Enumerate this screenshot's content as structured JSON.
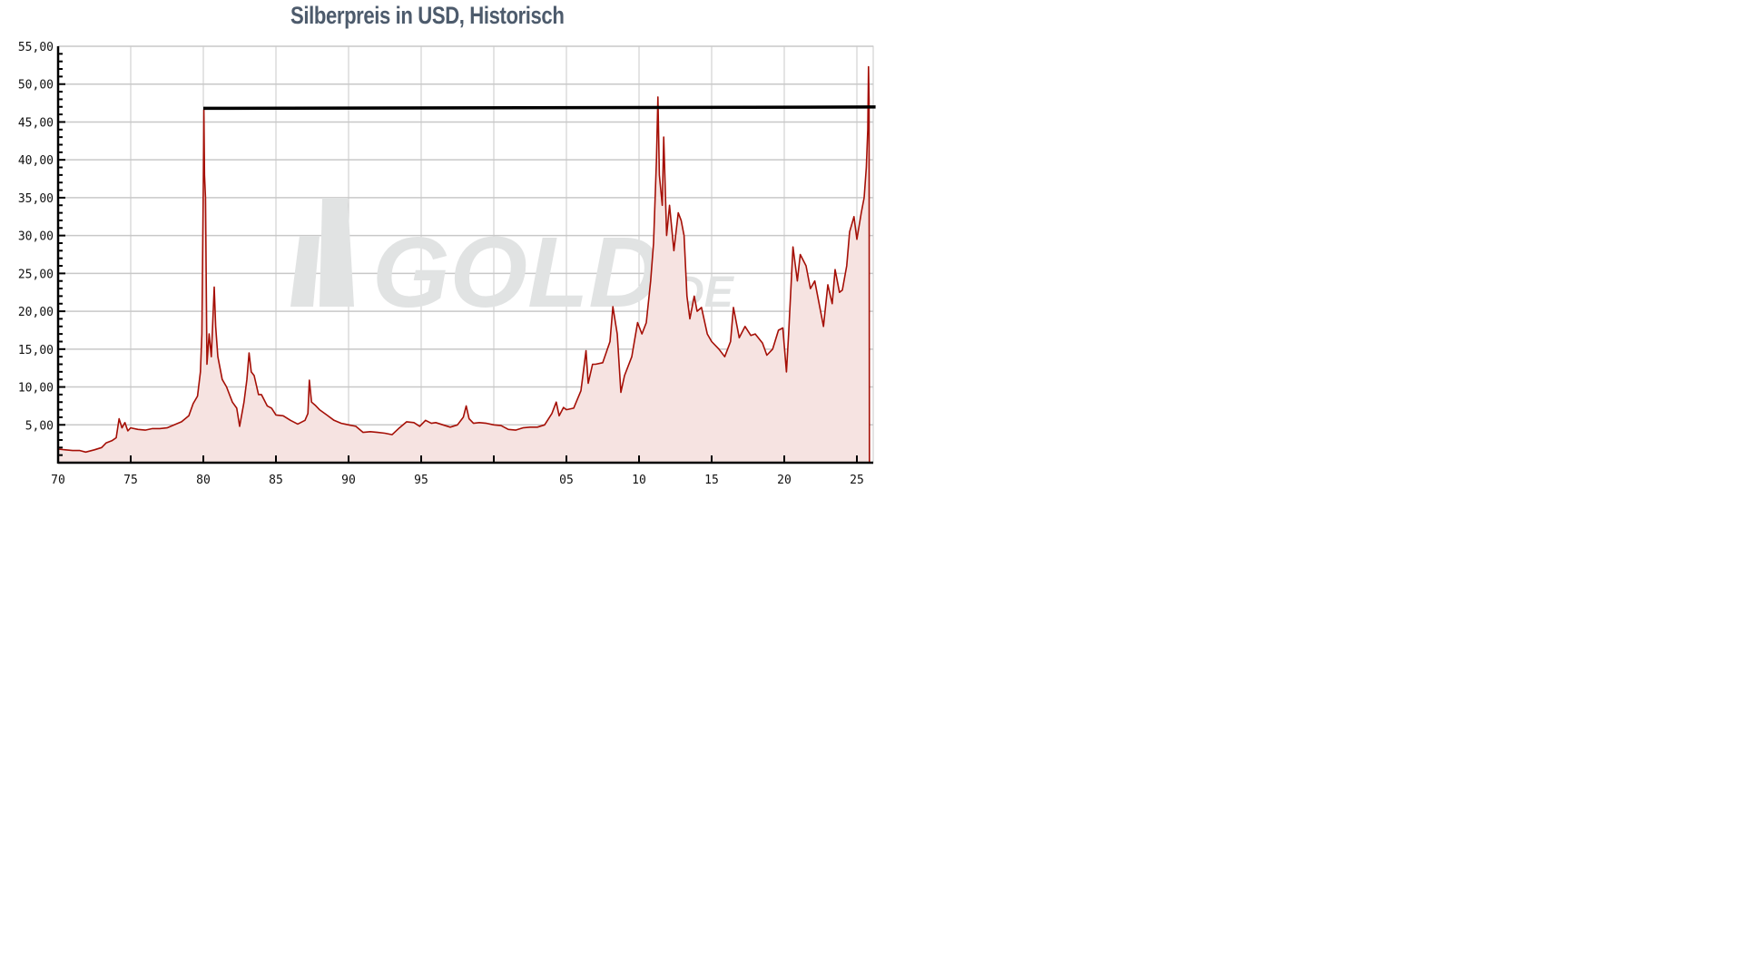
{
  "chart_data": {
    "type": "area",
    "title": "Silberpreis in USD, Historisch",
    "watermark": "GOLD.DE",
    "xlabel": "",
    "ylabel": "",
    "xlim": [
      1970,
      2026
    ],
    "ylim": [
      0,
      55
    ],
    "grid": true,
    "x_ticks": [
      {
        "value": 1970,
        "label": "70"
      },
      {
        "value": 1975,
        "label": "75"
      },
      {
        "value": 1980,
        "label": "80"
      },
      {
        "value": 1985,
        "label": "85"
      },
      {
        "value": 1990,
        "label": "90"
      },
      {
        "value": 1995,
        "label": "95"
      },
      {
        "value": 2000,
        "label": ""
      },
      {
        "value": 2005,
        "label": "05"
      },
      {
        "value": 2010,
        "label": "10"
      },
      {
        "value": 2015,
        "label": "15"
      },
      {
        "value": 2020,
        "label": "20"
      },
      {
        "value": 2025,
        "label": "25"
      }
    ],
    "y_ticks": [
      {
        "value": 5,
        "label": "5,00"
      },
      {
        "value": 10,
        "label": "10,00"
      },
      {
        "value": 15,
        "label": "15,00"
      },
      {
        "value": 20,
        "label": "20,00"
      },
      {
        "value": 25,
        "label": "25,00"
      },
      {
        "value": 30,
        "label": "30,00"
      },
      {
        "value": 35,
        "label": "35,00"
      },
      {
        "value": 40,
        "label": "40,00"
      },
      {
        "value": 45,
        "label": "45,00"
      },
      {
        "value": 50,
        "label": "50,00"
      },
      {
        "value": 55,
        "label": "55,00"
      }
    ],
    "reference_line": {
      "value": 46.8,
      "from": 1980,
      "to": 2026.1,
      "color": "#000000"
    },
    "series_color": "#a50f06",
    "fill_color": "#f6e3e1",
    "grid_color": "#c8c8c8",
    "series": [
      {
        "points": [
          [
            1970,
            1.8
          ],
          [
            1970.5,
            1.7
          ],
          [
            1971,
            1.6
          ],
          [
            1971.5,
            1.6
          ],
          [
            1971.9,
            1.4
          ],
          [
            1972.5,
            1.7
          ],
          [
            1973,
            2.0
          ],
          [
            1973.3,
            2.6
          ],
          [
            1973.7,
            2.9
          ],
          [
            1974.0,
            3.3
          ],
          [
            1974.2,
            5.8
          ],
          [
            1974.4,
            4.6
          ],
          [
            1974.6,
            5.3
          ],
          [
            1974.8,
            4.2
          ],
          [
            1975,
            4.6
          ],
          [
            1975.5,
            4.4
          ],
          [
            1976,
            4.3
          ],
          [
            1976.5,
            4.5
          ],
          [
            1977,
            4.5
          ],
          [
            1977.5,
            4.6
          ],
          [
            1978,
            5.0
          ],
          [
            1978.5,
            5.4
          ],
          [
            1979,
            6.2
          ],
          [
            1979.3,
            7.8
          ],
          [
            1979.6,
            8.8
          ],
          [
            1979.8,
            12
          ],
          [
            1979.9,
            17
          ],
          [
            1980.0,
            37
          ],
          [
            1980.04,
            46.6
          ],
          [
            1980.08,
            38
          ],
          [
            1980.15,
            35
          ],
          [
            1980.25,
            13
          ],
          [
            1980.4,
            17
          ],
          [
            1980.55,
            14
          ],
          [
            1980.75,
            23.2
          ],
          [
            1980.85,
            18
          ],
          [
            1981,
            14
          ],
          [
            1981.3,
            11
          ],
          [
            1981.6,
            10
          ],
          [
            1982,
            8
          ],
          [
            1982.3,
            7.2
          ],
          [
            1982.5,
            4.8
          ],
          [
            1982.8,
            8
          ],
          [
            1983,
            11
          ],
          [
            1983.15,
            14.5
          ],
          [
            1983.3,
            12
          ],
          [
            1983.5,
            11.5
          ],
          [
            1983.8,
            9
          ],
          [
            1984,
            9
          ],
          [
            1984.4,
            7.5
          ],
          [
            1984.7,
            7.2
          ],
          [
            1985,
            6.3
          ],
          [
            1985.5,
            6.2
          ],
          [
            1986,
            5.6
          ],
          [
            1986.5,
            5.1
          ],
          [
            1987,
            5.6
          ],
          [
            1987.2,
            6.5
          ],
          [
            1987.3,
            10.9
          ],
          [
            1987.45,
            8
          ],
          [
            1987.7,
            7.6
          ],
          [
            1988,
            7.0
          ],
          [
            1988.5,
            6.3
          ],
          [
            1989,
            5.6
          ],
          [
            1989.5,
            5.2
          ],
          [
            1990,
            5.0
          ],
          [
            1990.5,
            4.8
          ],
          [
            1991,
            4.0
          ],
          [
            1991.5,
            4.1
          ],
          [
            1992,
            4.0
          ],
          [
            1992.5,
            3.9
          ],
          [
            1993,
            3.7
          ],
          [
            1993.5,
            4.6
          ],
          [
            1994,
            5.4
          ],
          [
            1994.5,
            5.3
          ],
          [
            1994.9,
            4.8
          ],
          [
            1995.3,
            5.6
          ],
          [
            1995.7,
            5.2
          ],
          [
            1996,
            5.3
          ],
          [
            1996.5,
            5.0
          ],
          [
            1997,
            4.7
          ],
          [
            1997.5,
            5.0
          ],
          [
            1997.9,
            6.0
          ],
          [
            1998.1,
            7.5
          ],
          [
            1998.3,
            5.8
          ],
          [
            1998.6,
            5.2
          ],
          [
            1999,
            5.3
          ],
          [
            1999.5,
            5.2
          ],
          [
            2000,
            5.0
          ],
          [
            2000.5,
            4.9
          ],
          [
            2001,
            4.4
          ],
          [
            2001.5,
            4.3
          ],
          [
            2002,
            4.6
          ],
          [
            2002.5,
            4.7
          ],
          [
            2003,
            4.7
          ],
          [
            2003.5,
            5.0
          ],
          [
            2004,
            6.5
          ],
          [
            2004.3,
            8.0
          ],
          [
            2004.5,
            6.2
          ],
          [
            2004.8,
            7.3
          ],
          [
            2005,
            7.0
          ],
          [
            2005.5,
            7.2
          ],
          [
            2006,
            9.5
          ],
          [
            2006.35,
            14.8
          ],
          [
            2006.5,
            10.5
          ],
          [
            2006.8,
            13
          ],
          [
            2007,
            13
          ],
          [
            2007.5,
            13.2
          ],
          [
            2008,
            16
          ],
          [
            2008.2,
            20.6
          ],
          [
            2008.5,
            17
          ],
          [
            2008.75,
            9.3
          ],
          [
            2009,
            11.5
          ],
          [
            2009.5,
            14
          ],
          [
            2009.9,
            18.5
          ],
          [
            2010.2,
            17
          ],
          [
            2010.5,
            18.5
          ],
          [
            2010.8,
            24
          ],
          [
            2011,
            29
          ],
          [
            2011.2,
            40
          ],
          [
            2011.3,
            48.3
          ],
          [
            2011.4,
            38
          ],
          [
            2011.6,
            34
          ],
          [
            2011.7,
            43
          ],
          [
            2011.9,
            30
          ],
          [
            2012.1,
            34
          ],
          [
            2012.4,
            28
          ],
          [
            2012.7,
            33
          ],
          [
            2012.9,
            32
          ],
          [
            2013.1,
            30
          ],
          [
            2013.3,
            22
          ],
          [
            2013.5,
            19
          ],
          [
            2013.8,
            22
          ],
          [
            2014,
            20
          ],
          [
            2014.3,
            20.5
          ],
          [
            2014.7,
            17
          ],
          [
            2015,
            16
          ],
          [
            2015.5,
            15
          ],
          [
            2015.9,
            14
          ],
          [
            2016.3,
            16
          ],
          [
            2016.5,
            20.5
          ],
          [
            2016.9,
            16.5
          ],
          [
            2017.3,
            18
          ],
          [
            2017.7,
            16.8
          ],
          [
            2018,
            17
          ],
          [
            2018.5,
            15.8
          ],
          [
            2018.8,
            14.2
          ],
          [
            2019.2,
            15
          ],
          [
            2019.6,
            17.5
          ],
          [
            2019.9,
            17.8
          ],
          [
            2020.15,
            12
          ],
          [
            2020.3,
            17
          ],
          [
            2020.6,
            28.5
          ],
          [
            2020.9,
            24
          ],
          [
            2021.1,
            27.5
          ],
          [
            2021.5,
            26
          ],
          [
            2021.8,
            23
          ],
          [
            2022.1,
            24
          ],
          [
            2022.4,
            21
          ],
          [
            2022.7,
            18
          ],
          [
            2023.0,
            23.5
          ],
          [
            2023.3,
            21
          ],
          [
            2023.5,
            25.5
          ],
          [
            2023.8,
            22.5
          ],
          [
            2024.0,
            22.8
          ],
          [
            2024.3,
            26
          ],
          [
            2024.5,
            30.5
          ],
          [
            2024.8,
            32.5
          ],
          [
            2025.0,
            29.5
          ],
          [
            2025.3,
            33
          ],
          [
            2025.5,
            35
          ],
          [
            2025.65,
            39
          ],
          [
            2025.75,
            44
          ],
          [
            2025.8,
            52.3
          ],
          [
            2025.84,
            48
          ],
          [
            2025.86,
            0
          ]
        ]
      }
    ]
  }
}
